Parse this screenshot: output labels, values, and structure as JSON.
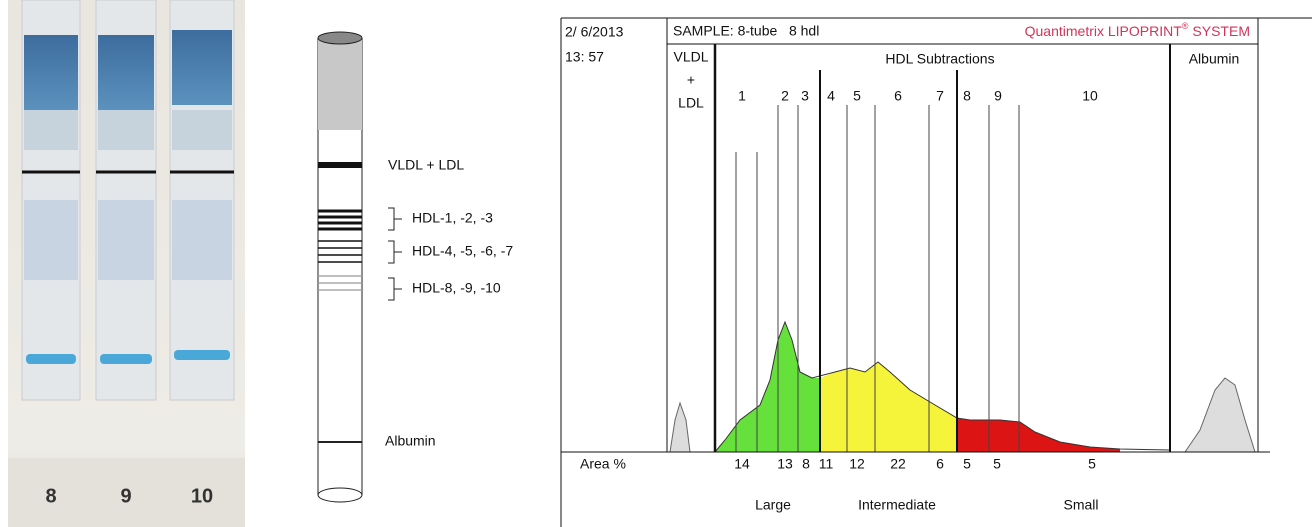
{
  "photo": {
    "tube_labels": [
      "8",
      "9",
      "10"
    ]
  },
  "diagram": {
    "labels": [
      "VLDL + LDL",
      "HDL-1, -2, -3",
      "HDL-4, -5, -6, -7",
      "HDL-8, -9, -10",
      "Albumin"
    ]
  },
  "lipoprint": {
    "date": "2/ 6/2013",
    "time": "13: 57",
    "sample": "SAMPLE: 8-tube   8 hdl",
    "brand": "Quantimetrix LIPOPRINT",
    "brand_mark": "®",
    "brand_system": "SYSTEM",
    "vldl_label": [
      "VLDL",
      "+",
      "LDL"
    ],
    "hdl_header": "HDL Subtractions",
    "albumin": "Albumin",
    "subfraction_numbers": [
      "1",
      "2",
      "3",
      "4",
      "5",
      "6",
      "7",
      "8",
      "9",
      "10"
    ],
    "area_label": "Area %",
    "area_values": [
      14,
      13,
      8,
      11,
      12,
      22,
      6,
      5,
      5,
      5
    ],
    "size_groups": [
      "Large",
      "Intermediate",
      "Small"
    ]
  }
}
